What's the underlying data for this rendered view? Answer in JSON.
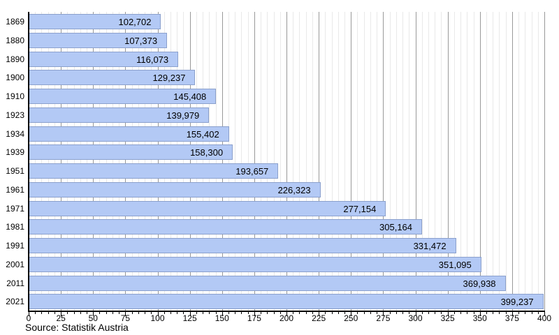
{
  "source_note": "Source: Statistik Austria",
  "colors": {
    "background": "#ffffff",
    "bar_fill": "#b3c9f5",
    "bar_border": "#8ba0cc",
    "grid_major": "#999999",
    "grid_minor": "#e9e9e9",
    "axis": "#000000",
    "text": "#000000"
  },
  "chart_data": {
    "type": "bar",
    "orientation": "horizontal",
    "title": "",
    "xlabel": "",
    "ylabel": "",
    "categories": [
      "1869",
      "1880",
      "1890",
      "1900",
      "1910",
      "1923",
      "1934",
      "1939",
      "1951",
      "1961",
      "1971",
      "1981",
      "1991",
      "2001",
      "2011",
      "2021"
    ],
    "values": [
      102702,
      107373,
      116073,
      129237,
      145408,
      139979,
      155402,
      158300,
      193657,
      226323,
      277154,
      305164,
      331472,
      351095,
      369938,
      399237
    ],
    "value_labels": [
      "102,702",
      "107,373",
      "116,073",
      "129,237",
      "145,408",
      "139,979",
      "155,402",
      "158,300",
      "193,657",
      "226,323",
      "277,154",
      "305,164",
      "331,472",
      "351,095",
      "369,938",
      "399,237"
    ],
    "x_axis": {
      "min": 0,
      "max": 400,
      "major_step": 25,
      "minor_step": 5,
      "value_divisor": 1000,
      "tick_labels": [
        "0",
        "25",
        "50",
        "75",
        "100",
        "125",
        "150",
        "175",
        "200",
        "225",
        "250",
        "275",
        "300",
        "325",
        "350",
        "375",
        "400"
      ]
    },
    "grid": "vertical, major and minor",
    "legend": "none",
    "value_label_position": "inside-end"
  }
}
